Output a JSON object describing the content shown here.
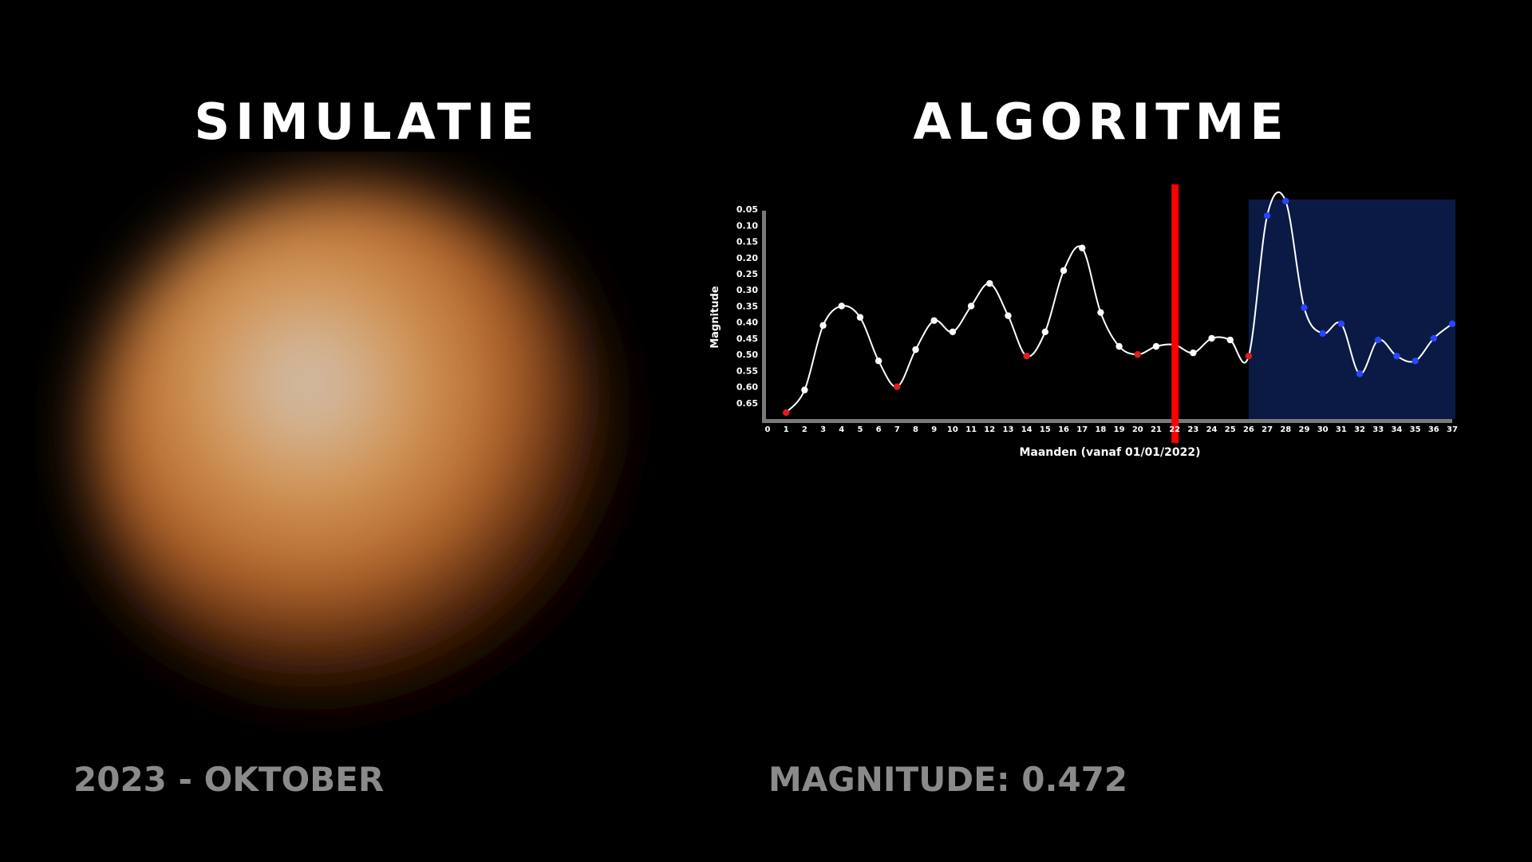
{
  "left_panel": {
    "title": "SIMULATIE",
    "date_label": "2023 - OKTOBER",
    "star_colors": {
      "core": "#cfc6bd",
      "mid": "#d49a5a",
      "outer": "#b5652a",
      "edge": "#3a1707"
    }
  },
  "right_panel": {
    "title": "ALGORITME",
    "magnitude_prefix": "MAGNITUDE:",
    "magnitude_value": "0.472"
  },
  "chart_data": {
    "type": "line",
    "xlabel": "Maanden (vanaf 01/01/2022)",
    "ylabel": "Magnitude",
    "y_inverted": true,
    "xlim": [
      0,
      37
    ],
    "ylim": [
      0.7,
      0.02
    ],
    "x_ticks": [
      0,
      1,
      2,
      3,
      4,
      5,
      6,
      7,
      8,
      9,
      10,
      11,
      12,
      13,
      14,
      15,
      16,
      17,
      18,
      19,
      20,
      21,
      22,
      23,
      24,
      25,
      26,
      27,
      28,
      29,
      30,
      31,
      32,
      33,
      34,
      35,
      36,
      37
    ],
    "y_ticks": [
      "0.05",
      "0.10",
      "0.15",
      "0.20",
      "0.25",
      "0.30",
      "0.35",
      "0.40",
      "0.45",
      "0.50",
      "0.55",
      "0.60",
      "0.65"
    ],
    "current_month_marker": 22,
    "forecast_region": [
      26,
      37
    ],
    "colors": {
      "line": "#ffffff",
      "point": "#ffffff",
      "minimum_point": "#e11c1c",
      "forecast_point": "#2b44ff",
      "marker": "#ff0000",
      "forecast_bg": "#0a1a44",
      "axis": "#7a7a7a"
    },
    "series": [
      {
        "points": [
          {
            "x": 1,
            "y": 0.68,
            "kind": "minimum"
          },
          {
            "x": 2,
            "y": 0.61,
            "kind": "observed"
          },
          {
            "x": 3,
            "y": 0.41,
            "kind": "observed"
          },
          {
            "x": 4,
            "y": 0.35,
            "kind": "observed"
          },
          {
            "x": 5,
            "y": 0.385,
            "kind": "observed"
          },
          {
            "x": 6,
            "y": 0.52,
            "kind": "observed"
          },
          {
            "x": 7,
            "y": 0.6,
            "kind": "minimum"
          },
          {
            "x": 8,
            "y": 0.485,
            "kind": "observed"
          },
          {
            "x": 9,
            "y": 0.395,
            "kind": "observed"
          },
          {
            "x": 10,
            "y": 0.43,
            "kind": "observed"
          },
          {
            "x": 11,
            "y": 0.35,
            "kind": "observed"
          },
          {
            "x": 12,
            "y": 0.28,
            "kind": "observed"
          },
          {
            "x": 13,
            "y": 0.38,
            "kind": "observed"
          },
          {
            "x": 14,
            "y": 0.505,
            "kind": "minimum"
          },
          {
            "x": 15,
            "y": 0.43,
            "kind": "observed"
          },
          {
            "x": 16,
            "y": 0.24,
            "kind": "observed"
          },
          {
            "x": 17,
            "y": 0.17,
            "kind": "observed"
          },
          {
            "x": 18,
            "y": 0.37,
            "kind": "observed"
          },
          {
            "x": 19,
            "y": 0.475,
            "kind": "observed"
          },
          {
            "x": 20,
            "y": 0.5,
            "kind": "minimum"
          },
          {
            "x": 21,
            "y": 0.475,
            "kind": "observed"
          },
          {
            "x": 22,
            "y": 0.47,
            "kind": "observed"
          },
          {
            "x": 23,
            "y": 0.495,
            "kind": "observed"
          },
          {
            "x": 24,
            "y": 0.45,
            "kind": "observed"
          },
          {
            "x": 25,
            "y": 0.455,
            "kind": "observed"
          },
          {
            "x": 26,
            "y": 0.505,
            "kind": "minimum"
          },
          {
            "x": 27,
            "y": 0.07,
            "kind": "forecast"
          },
          {
            "x": 28,
            "y": 0.025,
            "kind": "forecast"
          },
          {
            "x": 29,
            "y": 0.355,
            "kind": "forecast"
          },
          {
            "x": 30,
            "y": 0.435,
            "kind": "forecast"
          },
          {
            "x": 31,
            "y": 0.405,
            "kind": "forecast"
          },
          {
            "x": 32,
            "y": 0.56,
            "kind": "forecast"
          },
          {
            "x": 33,
            "y": 0.455,
            "kind": "forecast"
          },
          {
            "x": 34,
            "y": 0.505,
            "kind": "forecast"
          },
          {
            "x": 35,
            "y": 0.52,
            "kind": "forecast"
          },
          {
            "x": 36,
            "y": 0.45,
            "kind": "forecast"
          },
          {
            "x": 37,
            "y": 0.405,
            "kind": "forecast"
          }
        ]
      }
    ]
  }
}
